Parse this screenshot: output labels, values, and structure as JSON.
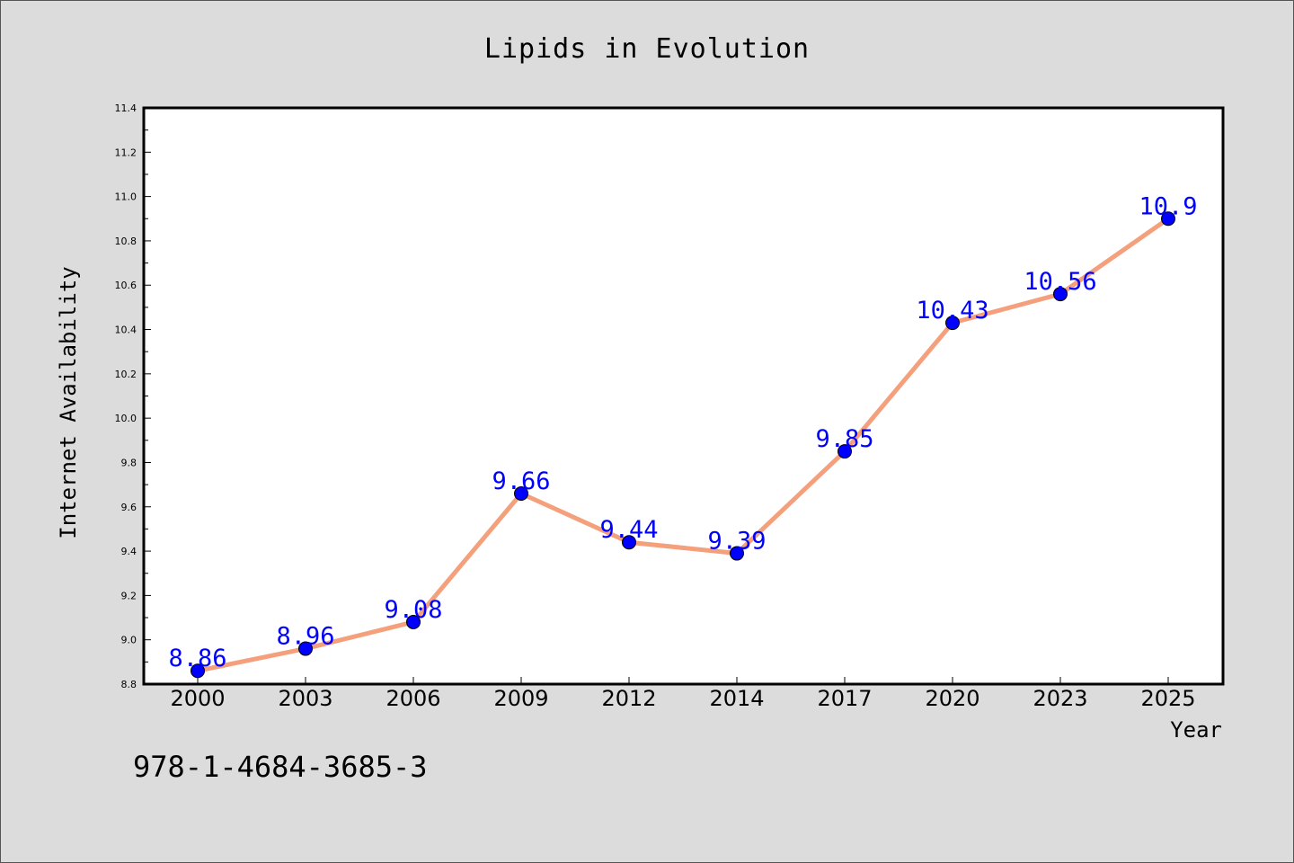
{
  "chart_data": {
    "type": "line",
    "title": "Lipids in Evolution",
    "xlabel": "Year",
    "ylabel": "Internet Availability",
    "categories": [
      "2000",
      "2003",
      "2006",
      "2009",
      "2012",
      "2014",
      "2017",
      "2020",
      "2023",
      "2025"
    ],
    "series": [
      {
        "values": [
          8.86,
          8.96,
          9.08,
          9.66,
          9.44,
          9.39,
          9.85,
          10.43,
          10.56,
          10.9
        ],
        "labels": [
          "8.86",
          "8.96",
          "9.08",
          "9.66",
          "9.44",
          "9.39",
          "9.85",
          "10.43",
          "10.56",
          "10.9"
        ],
        "line_color": "#f4a07c",
        "marker_color": "#0000ff"
      }
    ],
    "ylim": [
      8.8,
      11.4
    ],
    "yticks": [
      "8.8",
      "9.0",
      "9.2",
      "9.4",
      "9.6",
      "9.8",
      "10.0",
      "10.2",
      "10.4",
      "10.6",
      "10.8",
      "11.0",
      "11.2",
      "11.4"
    ],
    "grid": false,
    "background": "#dcdcdc",
    "plot_background": "#ffffff"
  },
  "footer": {
    "isbn": "978-1-4684-3685-3"
  }
}
